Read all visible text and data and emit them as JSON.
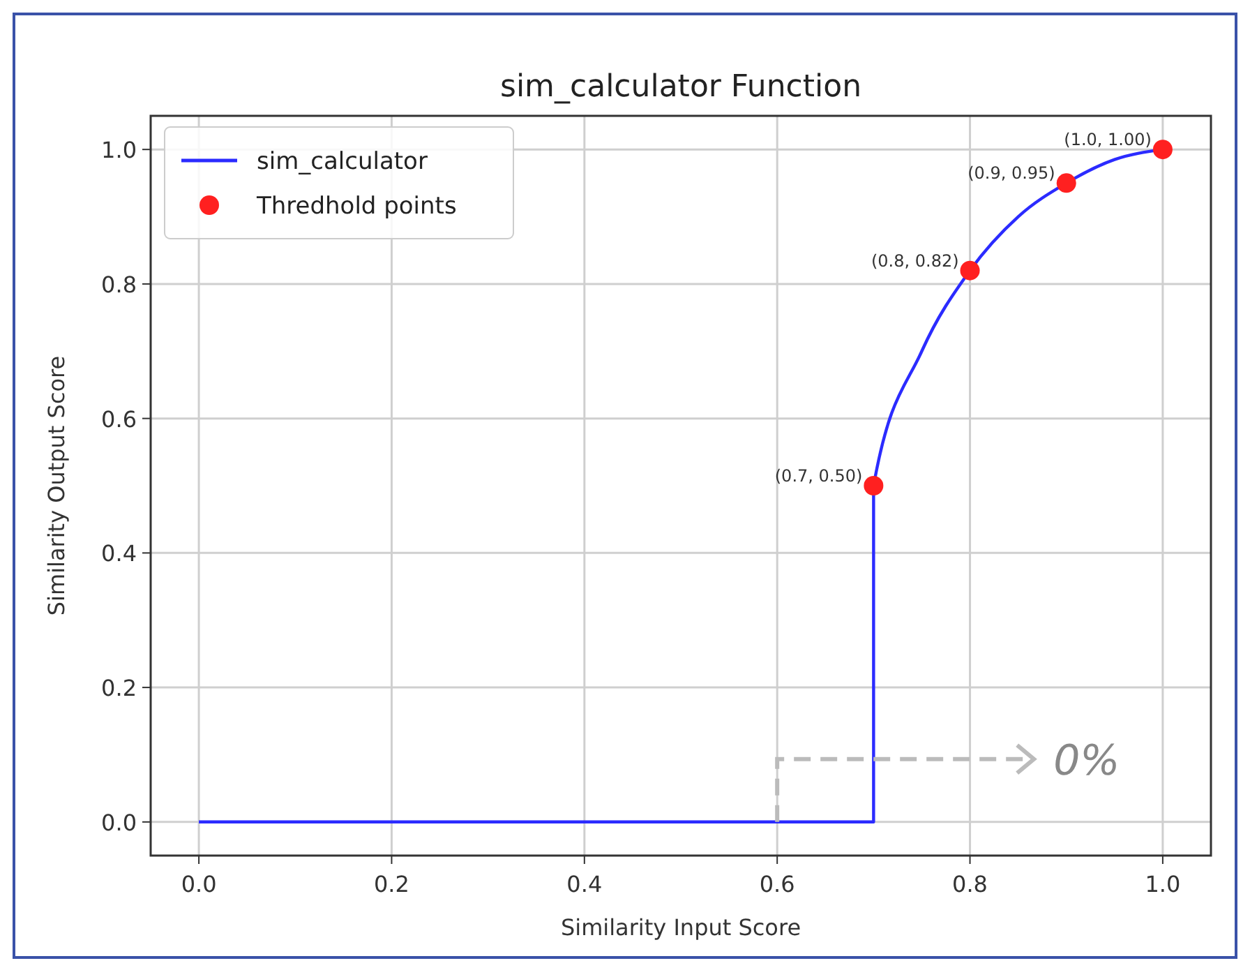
{
  "chart_data": {
    "type": "line",
    "title": "sim_calculator Function",
    "xlabel": "Similarity Input Score",
    "ylabel": "Similarity Output Score",
    "xlim": [
      -0.05,
      1.05
    ],
    "ylim": [
      -0.05,
      1.05
    ],
    "xticks": [
      {
        "value": 0,
        "label": "0.0"
      },
      {
        "value": 0.2,
        "label": "0.2"
      },
      {
        "value": 0.4,
        "label": "0.4"
      },
      {
        "value": 0.6,
        "label": "0.6"
      },
      {
        "value": 0.8,
        "label": "0.8"
      },
      {
        "value": 1,
        "label": "1.0"
      }
    ],
    "yticks": [
      {
        "value": 0,
        "label": "0.0"
      },
      {
        "value": 0.2,
        "label": "0.2"
      },
      {
        "value": 0.4,
        "label": "0.4"
      },
      {
        "value": 0.6,
        "label": "0.6"
      },
      {
        "value": 0.8,
        "label": "0.8"
      },
      {
        "value": 1,
        "label": "1.0"
      }
    ],
    "grid": true,
    "legend": "top left",
    "series": [
      {
        "name": "sim_calculator",
        "color": "#2b2bff",
        "x": [
          0,
          0.7,
          0.7,
          0.75,
          0.8,
          0.85,
          0.9,
          0.95,
          1.0
        ],
        "values": [
          0,
          0,
          0.5,
          0.7,
          0.82,
          0.9,
          0.95,
          0.985,
          1.0
        ]
      },
      {
        "name": "Thredhold points",
        "type": "scatter",
        "marker": "circle",
        "color": "#ff2020",
        "x": [
          0.7,
          0.8,
          0.9,
          1.0
        ],
        "values": [
          0.5,
          0.82,
          0.95,
          1.0
        ]
      }
    ],
    "annotations": [
      {
        "text": "(0.7, 0.50)",
        "x": 0.7,
        "y": 0.5
      },
      {
        "text": "(0.8, 0.82)",
        "x": 0.8,
        "y": 0.82
      },
      {
        "text": "(0.9, 0.95)",
        "x": 0.9,
        "y": 0.95
      },
      {
        "text": "(1.0, 1.00)",
        "x": 1.0,
        "y": 1.0
      },
      {
        "text": "0%",
        "x": 0.6,
        "y": 0
      }
    ]
  }
}
